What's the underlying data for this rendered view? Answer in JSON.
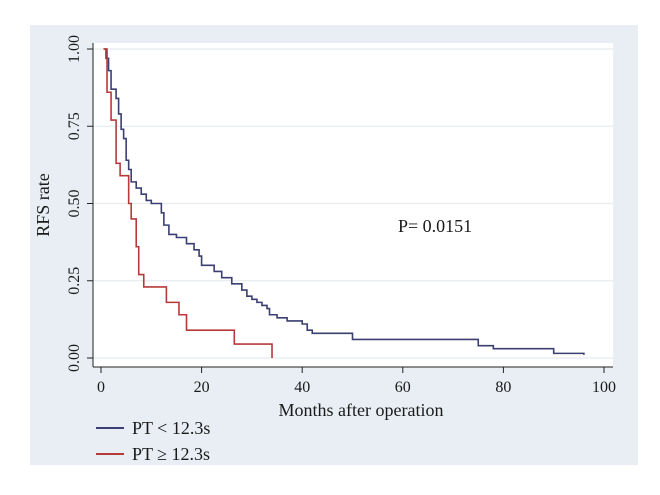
{
  "chart_data": {
    "type": "line",
    "subtype": "kaplan-meier step curve",
    "title": "",
    "xlabel": "Months after operation",
    "ylabel": "RFS rate",
    "xlim": [
      0,
      100
    ],
    "ylim": [
      0,
      1
    ],
    "x_ticks": [
      "0",
      "20",
      "40",
      "60",
      "80",
      "100"
    ],
    "y_ticks": [
      "0.00",
      "0.25",
      "0.50",
      "0.75",
      "1.00"
    ],
    "grid": "horizontal",
    "legend_position": "bottom-left",
    "annotation": "P= 0.0151",
    "series": [
      {
        "name": "PT < 12.3s",
        "color": "#3b3f72",
        "points": [
          [
            0.5,
            1.0
          ],
          [
            1.0,
            0.97
          ],
          [
            1.5,
            0.93
          ],
          [
            2.0,
            0.87
          ],
          [
            3.0,
            0.84
          ],
          [
            3.5,
            0.79
          ],
          [
            4.0,
            0.74
          ],
          [
            4.5,
            0.71
          ],
          [
            5.0,
            0.64
          ],
          [
            5.5,
            0.61
          ],
          [
            6.0,
            0.57
          ],
          [
            7.0,
            0.55
          ],
          [
            8.0,
            0.53
          ],
          [
            9.0,
            0.51
          ],
          [
            10.0,
            0.5
          ],
          [
            12.0,
            0.47
          ],
          [
            12.5,
            0.43
          ],
          [
            13.5,
            0.4
          ],
          [
            15.0,
            0.39
          ],
          [
            17.0,
            0.37
          ],
          [
            18.5,
            0.35
          ],
          [
            19.5,
            0.33
          ],
          [
            20.0,
            0.3
          ],
          [
            22.5,
            0.28
          ],
          [
            24.0,
            0.26
          ],
          [
            26.0,
            0.24
          ],
          [
            28.0,
            0.22
          ],
          [
            29.0,
            0.2
          ],
          [
            30.0,
            0.19
          ],
          [
            31.0,
            0.18
          ],
          [
            32.0,
            0.17
          ],
          [
            33.0,
            0.16
          ],
          [
            33.5,
            0.14
          ],
          [
            35.0,
            0.13
          ],
          [
            37.0,
            0.12
          ],
          [
            40.0,
            0.11
          ],
          [
            41.0,
            0.09
          ],
          [
            42.0,
            0.08
          ],
          [
            50.0,
            0.06
          ],
          [
            75.0,
            0.04
          ],
          [
            78.0,
            0.03
          ],
          [
            90.0,
            0.015
          ],
          [
            96.0,
            0.01
          ]
        ]
      },
      {
        "name": "PT ≥ 12.3s",
        "color": "#b63a3a",
        "points": [
          [
            0.5,
            1.0
          ],
          [
            1.2,
            0.86
          ],
          [
            2.0,
            0.77
          ],
          [
            3.0,
            0.63
          ],
          [
            3.8,
            0.59
          ],
          [
            5.5,
            0.5
          ],
          [
            6.0,
            0.45
          ],
          [
            7.0,
            0.36
          ],
          [
            7.5,
            0.27
          ],
          [
            8.5,
            0.23
          ],
          [
            13.0,
            0.18
          ],
          [
            15.5,
            0.14
          ],
          [
            17.0,
            0.09
          ],
          [
            26.5,
            0.045
          ],
          [
            34.0,
            0.0
          ]
        ]
      }
    ]
  }
}
